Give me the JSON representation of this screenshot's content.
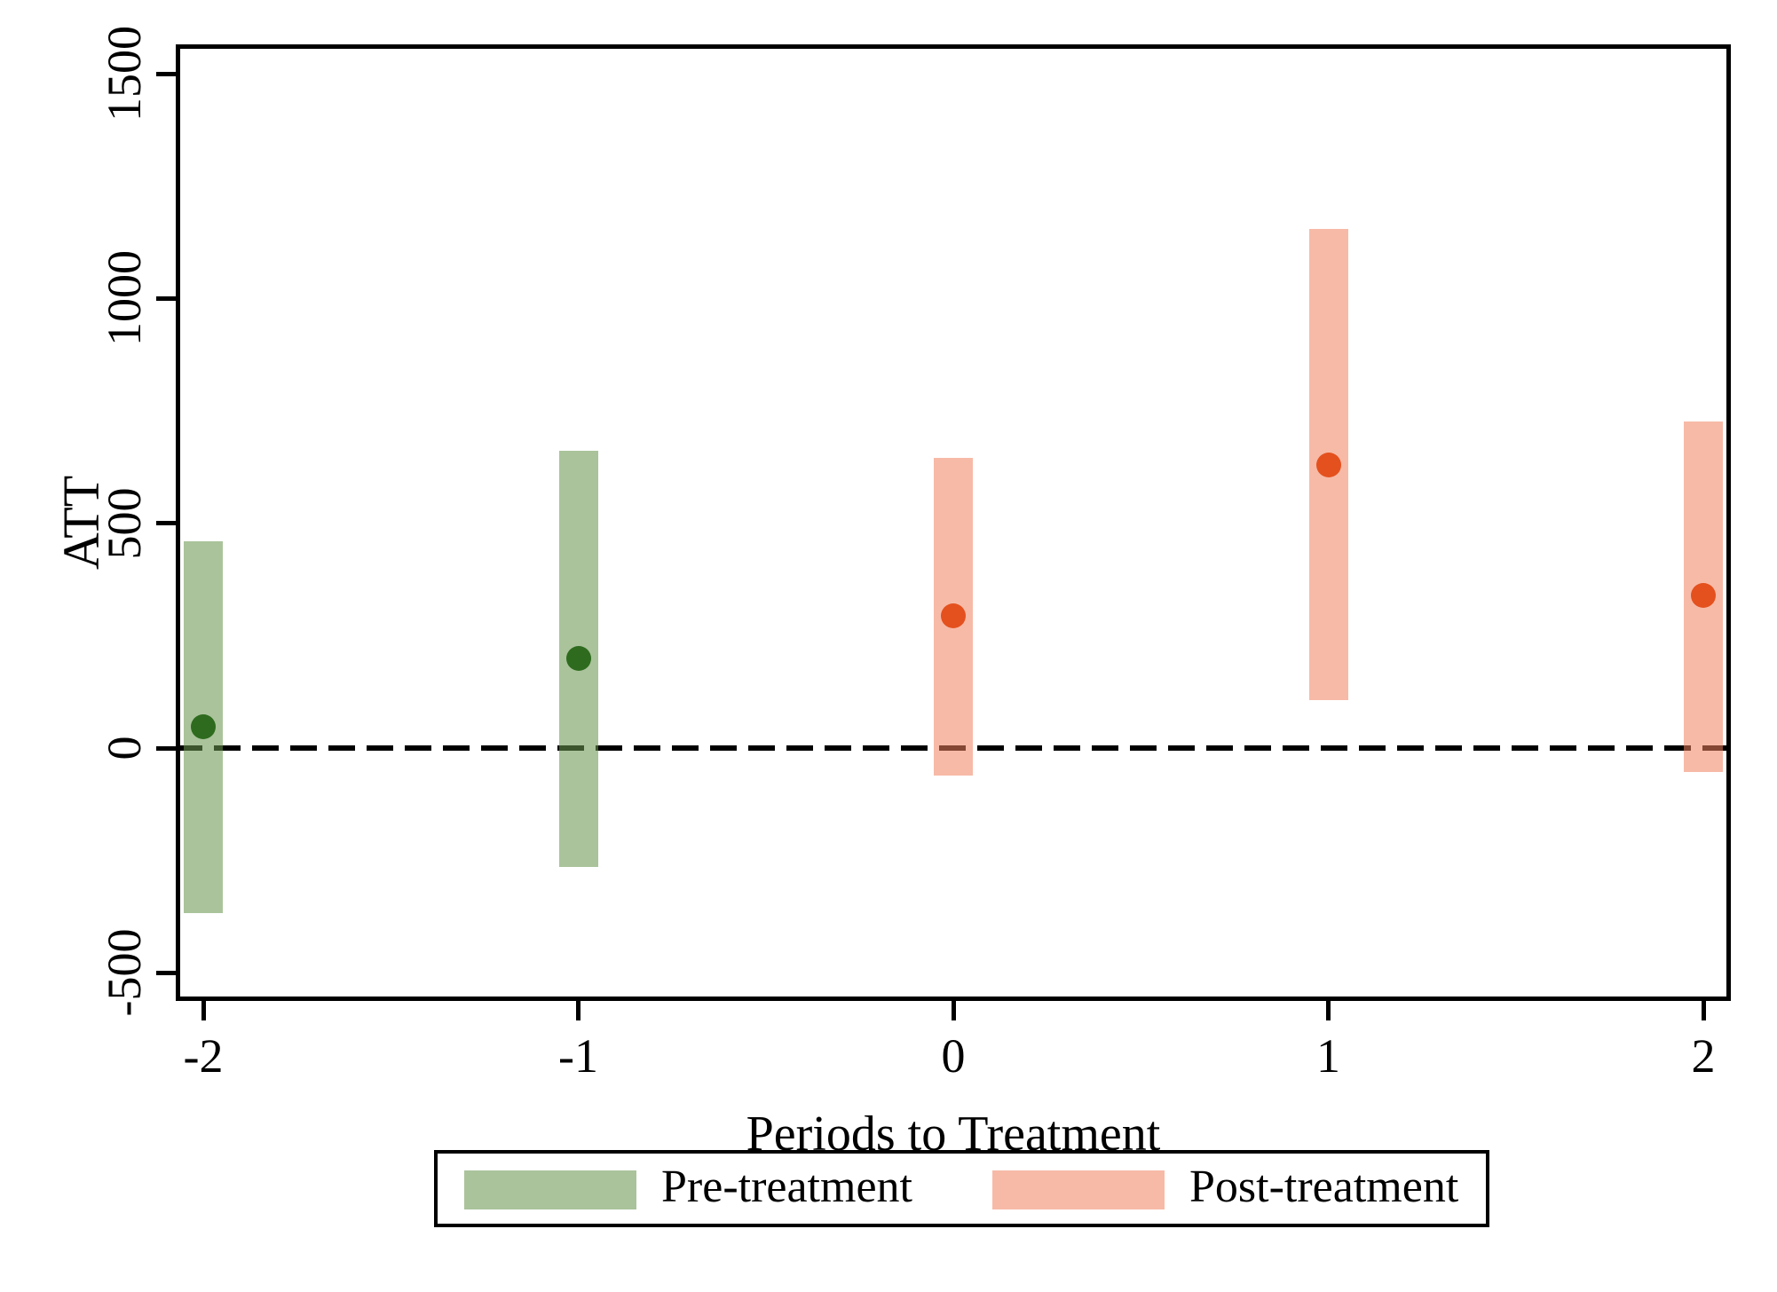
{
  "chart_data": {
    "type": "bar",
    "subtype": "event-study-point-estimates-with-ci-bars",
    "title": "",
    "xlabel": "Periods to Treatment",
    "ylabel": "ATT",
    "x_axis": {
      "ticks": [
        -2,
        -1,
        0,
        1,
        2
      ]
    },
    "y_axis": {
      "ticks": [
        1500,
        1000,
        500,
        0,
        -500
      ],
      "range": [
        -573,
        1571
      ]
    },
    "zero_reference_line": {
      "value": 0,
      "style": "dashed",
      "color": "#000000"
    },
    "grid": false,
    "legend_position": "bottom",
    "series": [
      {
        "name": "Pre-treatment",
        "fill": "rgba(105,150,80,0.57)",
        "point_color": "#2e6b1e",
        "points": [
          {
            "x": -2,
            "estimate": 48,
            "ci_low": -367,
            "ci_high": 459
          },
          {
            "x": -1,
            "estimate": 200,
            "ci_low": -264,
            "ci_high": 661
          }
        ]
      },
      {
        "name": "Post-treatment",
        "fill": "rgba(240,130,95,0.55)",
        "point_color": "#e4511e",
        "points": [
          {
            "x": 0,
            "estimate": 294,
            "ci_low": -61,
            "ci_high": 646
          },
          {
            "x": 1,
            "estimate": 629,
            "ci_low": 106,
            "ci_high": 1155
          },
          {
            "x": 2,
            "estimate": 340,
            "ci_low": -53,
            "ci_high": 727
          }
        ]
      }
    ]
  },
  "labels": {
    "y_axis_title": "ATT",
    "x_axis_title": "Periods to Treatment"
  },
  "colors": {
    "axis": "#000000",
    "background": "#ffffff",
    "pre_fill": "rgba(105,150,80,0.57)",
    "pre_point": "#2e6b1e",
    "post_fill": "rgba(240,130,95,0.55)",
    "post_point": "#e4511e"
  }
}
